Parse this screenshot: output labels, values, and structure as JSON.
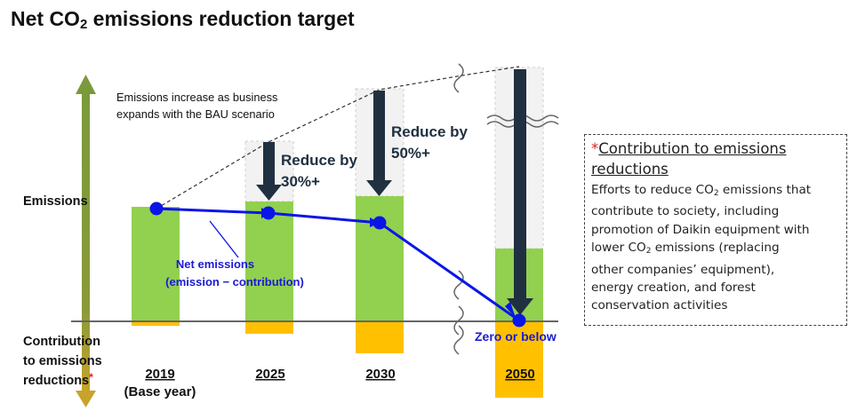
{
  "title": {
    "main": "Net CO",
    "sub": "2",
    "rest": " emissions reduction target"
  },
  "axis": {
    "emissions_label": "Emissions",
    "contribution_label_lines": [
      "Contribution",
      "to emissions",
      "reductions"
    ],
    "asterisk": "*"
  },
  "years": [
    {
      "label": "2019",
      "sub": "(Base year)"
    },
    {
      "label": "2025"
    },
    {
      "label": "2030"
    },
    {
      "label": "2050"
    }
  ],
  "annotations": {
    "bau_lines": [
      "Emissions increase as business",
      "expands with the BAU scenario"
    ],
    "reduce_30_lines": [
      "Reduce by",
      "30%+"
    ],
    "reduce_50_lines": [
      "Reduce by",
      "50%+"
    ],
    "net_lines": [
      "Net emissions",
      "(emission − contribution)"
    ],
    "zero": "Zero or below"
  },
  "note": {
    "asterisk": "*",
    "heading_lines": [
      "Contribution to emissions",
      "reductions"
    ],
    "body_lines": [
      {
        "pre": "Efforts to reduce CO",
        "sub": "2",
        "post": " emissions that"
      },
      {
        "pre": "contribute to society, including"
      },
      {
        "pre": "promotion of Daikin equipment with"
      },
      {
        "pre": "lower CO",
        "sub": "2",
        "post": " emissions (replacing"
      },
      {
        "pre": "other companies’ equipment),"
      },
      {
        "pre": "energy creation, and forest"
      },
      {
        "pre": "conservation activities"
      }
    ]
  },
  "colors": {
    "emissions_bar": "#92d050",
    "contribution_bar": "#ffc000",
    "bau_bar": "#f2f2f2",
    "reduction_arrow": "#203040",
    "net_line": "#0a16e6",
    "axis_arrow": "#7a9a3a",
    "axis_arrow_bottom": "#c8a32a",
    "annotation_blue": "#1a1ad6",
    "note_asterisk": "#e0201a"
  }
}
